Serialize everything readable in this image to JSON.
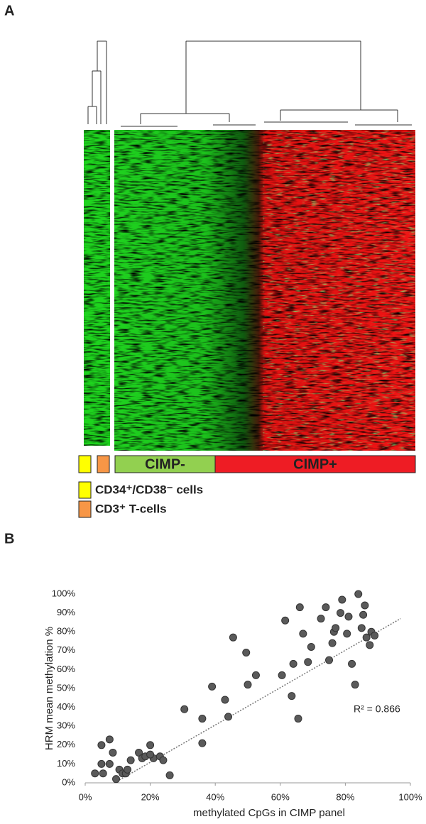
{
  "panel_a": {
    "label": "A",
    "groups": [
      {
        "name": "CIMP-",
        "color": "#92d050"
      },
      {
        "name": "CIMP+",
        "color": "#ee1c24"
      }
    ],
    "legend": [
      {
        "name": "CD34⁺/CD38⁻ cells",
        "color": "#ffff00"
      },
      {
        "name": "CD3⁺ T-cells",
        "color": "#f79646"
      }
    ]
  },
  "chart_data": {
    "type": "scatter",
    "panel_label": "B",
    "x_label": "methylated CpGs in CIMP panel",
    "y_label": "HRM mean methylation %",
    "color": "#5a5a5a",
    "x": [
      3,
      5,
      5.5,
      5,
      7.5,
      8.5,
      7.5,
      9.5,
      10.5,
      11.5,
      12.5,
      13,
      14,
      16.5,
      17.5,
      18.5,
      20,
      21,
      20,
      23,
      24,
      26,
      30.5,
      36,
      36,
      39,
      43,
      44,
      45.5,
      49.5,
      50,
      52.5,
      60.5,
      61.5,
      63.5,
      64,
      65.5,
      66,
      67,
      68.5,
      69.5,
      72.5,
      74,
      75,
      76,
      76.5,
      77,
      78.5,
      79,
      80.5,
      81,
      82,
      83,
      84,
      85,
      85.5,
      86,
      86.5,
      87.5,
      88,
      89
    ],
    "values": [
      5,
      20,
      5,
      10,
      23,
      16,
      10,
      2,
      7,
      5,
      5,
      7,
      12,
      16,
      13,
      14,
      20,
      13,
      15,
      14,
      12,
      4,
      39,
      34,
      21,
      51,
      44,
      35,
      77,
      69,
      52,
      57,
      57,
      86,
      46,
      63,
      34,
      93,
      79,
      64,
      72,
      87,
      93,
      65,
      74,
      80,
      82,
      90,
      97,
      79,
      88,
      63,
      52,
      100,
      82,
      89,
      94,
      77,
      73,
      80,
      78
    ],
    "trendline": {
      "x": [
        9,
        97
      ],
      "y": [
        0,
        87
      ]
    },
    "annotation": "R² = 0.866",
    "xlim": [
      0,
      100
    ],
    "ylim": [
      0,
      100
    ],
    "xticks": [
      {
        "value": 0,
        "label": "0%"
      },
      {
        "value": 20,
        "label": "20%"
      },
      {
        "value": 40,
        "label": "40%"
      },
      {
        "value": 60,
        "label": "60%"
      },
      {
        "value": 80,
        "label": "80%"
      },
      {
        "value": 100,
        "label": "100%"
      }
    ],
    "yticks": [
      {
        "value": 0,
        "label": "0%"
      },
      {
        "value": 10,
        "label": "10%"
      },
      {
        "value": 20,
        "label": "20%"
      },
      {
        "value": 30,
        "label": "30%"
      },
      {
        "value": 40,
        "label": "40%"
      },
      {
        "value": 50,
        "label": "50%"
      },
      {
        "value": 60,
        "label": "60%"
      },
      {
        "value": 70,
        "label": "70%"
      },
      {
        "value": 80,
        "label": "80%"
      },
      {
        "value": 90,
        "label": "90%"
      },
      {
        "value": 100,
        "label": "100%"
      }
    ]
  }
}
